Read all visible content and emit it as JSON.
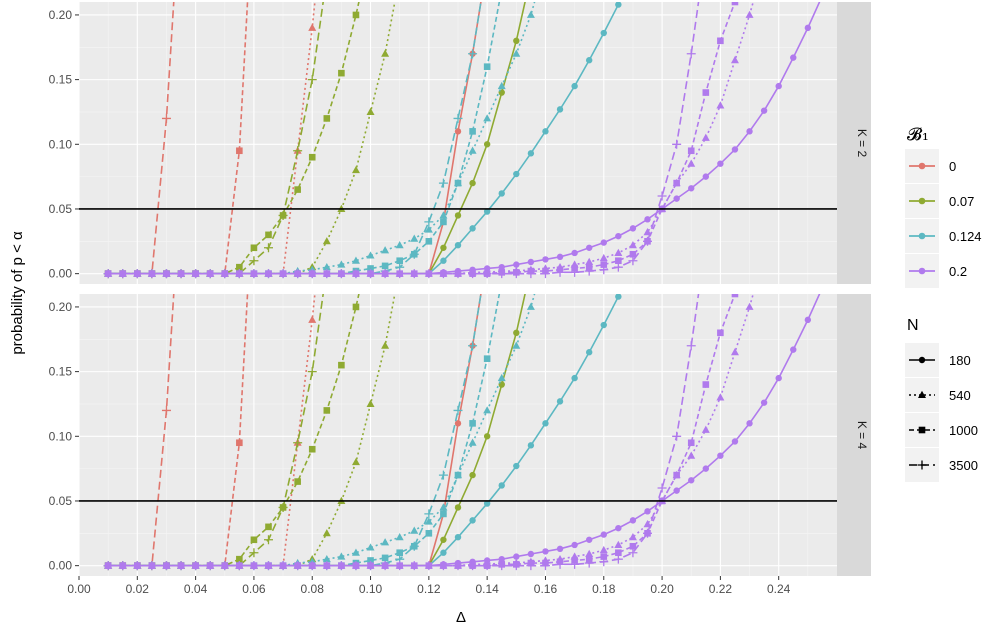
{
  "chart_data": {
    "type": "line",
    "xlabel": "Δ",
    "ylabel": "probability of p < α",
    "xlim": [
      0.0,
      0.26
    ],
    "ylim": [
      -0.008,
      0.21
    ],
    "x_ticks": [
      0.0,
      0.02,
      0.04,
      0.06,
      0.08,
      0.1,
      0.12,
      0.14,
      0.16,
      0.18,
      0.2,
      0.22,
      0.24
    ],
    "x_tick_labels": [
      "0.00",
      "0.02",
      "0.04",
      "0.06",
      "0.08",
      "0.10",
      "0.12",
      "0.14",
      "0.16",
      "0.18",
      "0.20",
      "0.22",
      "0.24"
    ],
    "y_ticks": [
      0.0,
      0.05,
      0.1,
      0.15,
      0.2
    ],
    "y_tick_labels": [
      "0.00",
      "0.05",
      "0.10",
      "0.15",
      "0.20"
    ],
    "reference_line": 0.05,
    "grid": true,
    "facets": [
      "K = 2",
      "K = 4"
    ],
    "color_legend": {
      "title": "𝓑₁",
      "entries": [
        {
          "label": "0",
          "color": "#E0766D"
        },
        {
          "label": "0.07",
          "color": "#8FAA32"
        },
        {
          "label": "0.124",
          "color": "#5CB8C2"
        },
        {
          "label": "0.2",
          "color": "#B07AED"
        }
      ]
    },
    "shape_legend": {
      "title": "N",
      "entries": [
        {
          "label": "180",
          "shape": "circle",
          "dash": "solid"
        },
        {
          "label": "540",
          "shape": "triangle",
          "dash": "dotted"
        },
        {
          "label": "1000",
          "shape": "square",
          "dash": "dashed"
        },
        {
          "label": "3500",
          "shape": "plus",
          "dash": "longdash"
        }
      ]
    },
    "series": [
      {
        "b1": "0",
        "n": "180",
        "x": [
          0.01,
          0.12,
          0.125,
          0.13,
          0.135,
          0.14
        ],
        "y": [
          0,
          0,
          0.04,
          0.11,
          0.17,
          0.24
        ]
      },
      {
        "b1": "0",
        "n": "540",
        "x": [
          0.01,
          0.07,
          0.075,
          0.08,
          0.085
        ],
        "y": [
          0,
          0,
          0.095,
          0.19,
          0.3
        ]
      },
      {
        "b1": "0",
        "n": "1000",
        "x": [
          0.01,
          0.05,
          0.055,
          0.06
        ],
        "y": [
          0,
          0,
          0.095,
          0.3
        ]
      },
      {
        "b1": "0",
        "n": "3500",
        "x": [
          0.01,
          0.025,
          0.03,
          0.035
        ],
        "y": [
          0,
          0,
          0.12,
          0.3
        ]
      },
      {
        "b1": "0.07",
        "n": "180",
        "x": [
          0.01,
          0.12,
          0.125,
          0.13,
          0.135,
          0.14,
          0.145,
          0.15,
          0.155
        ],
        "y": [
          0,
          0,
          0.02,
          0.045,
          0.07,
          0.1,
          0.14,
          0.18,
          0.23
        ]
      },
      {
        "b1": "0.07",
        "n": "540",
        "x": [
          0.01,
          0.075,
          0.08,
          0.085,
          0.09,
          0.095,
          0.1,
          0.105,
          0.11
        ],
        "y": [
          0,
          0,
          0.005,
          0.025,
          0.05,
          0.08,
          0.125,
          0.17,
          0.23
        ]
      },
      {
        "b1": "0.07",
        "n": "1000",
        "x": [
          0.01,
          0.05,
          0.055,
          0.06,
          0.065,
          0.07,
          0.075,
          0.08,
          0.085,
          0.09,
          0.095,
          0.1
        ],
        "y": [
          0,
          0,
          0.005,
          0.02,
          0.03,
          0.045,
          0.065,
          0.09,
          0.12,
          0.155,
          0.2,
          0.25
        ]
      },
      {
        "b1": "0.07",
        "n": "3500",
        "x": [
          0.01,
          0.055,
          0.06,
          0.065,
          0.07,
          0.075,
          0.08,
          0.085
        ],
        "y": [
          0,
          0,
          0.01,
          0.02,
          0.045,
          0.095,
          0.15,
          0.23
        ]
      },
      {
        "b1": "0.124",
        "n": "180",
        "x": [
          0.01,
          0.12,
          0.125,
          0.13,
          0.135,
          0.14,
          0.145,
          0.15,
          0.155,
          0.16,
          0.165,
          0.17,
          0.175,
          0.18,
          0.185,
          0.19
        ],
        "y": [
          0,
          0,
          0.01,
          0.022,
          0.035,
          0.048,
          0.062,
          0.077,
          0.093,
          0.11,
          0.127,
          0.145,
          0.165,
          0.186,
          0.208,
          0.235
        ]
      },
      {
        "b1": "0.124",
        "n": "540",
        "x": [
          0.01,
          0.07,
          0.075,
          0.08,
          0.085,
          0.09,
          0.095,
          0.1,
          0.105,
          0.11,
          0.115,
          0.12,
          0.125,
          0.13,
          0.135,
          0.14,
          0.145,
          0.15,
          0.155,
          0.16
        ],
        "y": [
          0,
          0,
          0.002,
          0.003,
          0.005,
          0.007,
          0.01,
          0.014,
          0.018,
          0.022,
          0.027,
          0.034,
          0.045,
          0.07,
          0.095,
          0.12,
          0.145,
          0.17,
          0.2,
          0.24
        ]
      },
      {
        "b1": "0.124",
        "n": "1000",
        "x": [
          0.01,
          0.09,
          0.095,
          0.1,
          0.105,
          0.11,
          0.115,
          0.12,
          0.125,
          0.13,
          0.135,
          0.14,
          0.145
        ],
        "y": [
          0,
          0,
          0.002,
          0.004,
          0.006,
          0.01,
          0.015,
          0.025,
          0.04,
          0.07,
          0.11,
          0.16,
          0.22
        ]
      },
      {
        "b1": "0.124",
        "n": "3500",
        "x": [
          0.01,
          0.1,
          0.105,
          0.11,
          0.115,
          0.12,
          0.125,
          0.13,
          0.135,
          0.14
        ],
        "y": [
          0,
          0,
          0.002,
          0.005,
          0.015,
          0.04,
          0.07,
          0.12,
          0.17,
          0.24
        ]
      },
      {
        "b1": "0.2",
        "n": "180",
        "x": [
          0.01,
          0.12,
          0.125,
          0.13,
          0.135,
          0.14,
          0.145,
          0.15,
          0.155,
          0.16,
          0.165,
          0.17,
          0.175,
          0.18,
          0.185,
          0.19,
          0.195,
          0.2,
          0.205,
          0.21,
          0.215,
          0.22,
          0.225,
          0.23,
          0.235,
          0.24,
          0.245,
          0.25,
          0.255
        ],
        "y": [
          0,
          0,
          0.001,
          0.002,
          0.003,
          0.004,
          0.005,
          0.007,
          0.009,
          0.011,
          0.013,
          0.016,
          0.02,
          0.024,
          0.029,
          0.035,
          0.042,
          0.05,
          0.058,
          0.066,
          0.075,
          0.085,
          0.096,
          0.11,
          0.126,
          0.145,
          0.167,
          0.19,
          0.215
        ]
      },
      {
        "b1": "0.2",
        "n": "540",
        "x": [
          0.01,
          0.13,
          0.135,
          0.14,
          0.145,
          0.15,
          0.155,
          0.16,
          0.165,
          0.17,
          0.175,
          0.18,
          0.185,
          0.19,
          0.195,
          0.2,
          0.205,
          0.21,
          0.215,
          0.22,
          0.225,
          0.23,
          0.235
        ],
        "y": [
          0,
          0,
          0.001,
          0.001,
          0.002,
          0.002,
          0.003,
          0.004,
          0.005,
          0.007,
          0.009,
          0.012,
          0.016,
          0.022,
          0.032,
          0.05,
          0.07,
          0.085,
          0.105,
          0.13,
          0.165,
          0.2,
          0.24
        ]
      },
      {
        "b1": "0.2",
        "n": "1000",
        "x": [
          0.01,
          0.14,
          0.145,
          0.15,
          0.155,
          0.16,
          0.165,
          0.17,
          0.175,
          0.18,
          0.185,
          0.19,
          0.195,
          0.2,
          0.205,
          0.21,
          0.215,
          0.22,
          0.225,
          0.23
        ],
        "y": [
          0,
          0,
          0.001,
          0.001,
          0.002,
          0.002,
          0.003,
          0.004,
          0.005,
          0.007,
          0.01,
          0.015,
          0.025,
          0.05,
          0.07,
          0.095,
          0.14,
          0.18,
          0.21,
          0.25
        ]
      },
      {
        "b1": "0.2",
        "n": "3500",
        "x": [
          0.01,
          0.16,
          0.165,
          0.17,
          0.175,
          0.18,
          0.185,
          0.19,
          0.195,
          0.2,
          0.205,
          0.21,
          0.215
        ],
        "y": [
          0,
          0,
          0.001,
          0.001,
          0.002,
          0.003,
          0.005,
          0.01,
          0.025,
          0.06,
          0.1,
          0.17,
          0.25
        ]
      }
    ]
  }
}
